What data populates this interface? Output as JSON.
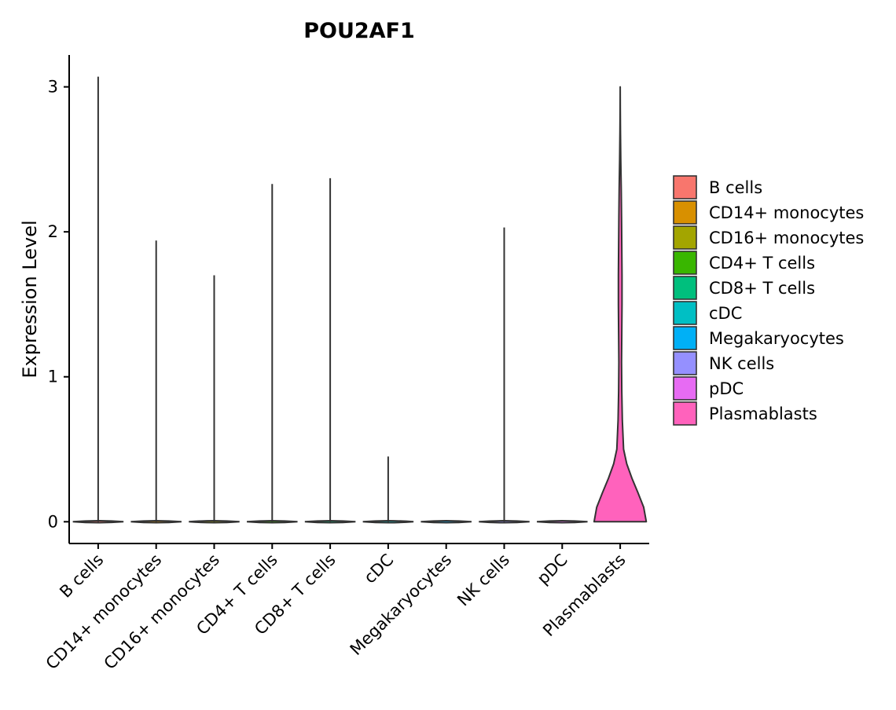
{
  "chart_data": {
    "type": "violin",
    "title": "POU2AF1",
    "xlabel": "",
    "ylabel": "Expression Level",
    "ylim": [
      -0.15,
      3.22
    ],
    "yticks": [
      0,
      1,
      2,
      3
    ],
    "categories": [
      "B cells",
      "CD14+ monocytes",
      "CD16+ monocytes",
      "CD4+ T cells",
      "CD8+ T cells",
      "cDC",
      "Megakaryocytes",
      "NK cells",
      "pDC",
      "Plasmablasts"
    ],
    "series": [
      {
        "name": "B cells",
        "color": "#F8766D",
        "max": 3.07
      },
      {
        "name": "CD14+ monocytes",
        "color": "#D89000",
        "max": 1.94
      },
      {
        "name": "CD16+ monocytes",
        "color": "#A3A500",
        "max": 1.7
      },
      {
        "name": "CD4+ T cells",
        "color": "#39B600",
        "max": 2.33
      },
      {
        "name": "CD8+ T cells",
        "color": "#00BF7D",
        "max": 2.37
      },
      {
        "name": "cDC",
        "color": "#00BFC4",
        "max": 0.45
      },
      {
        "name": "Megakaryocytes",
        "color": "#00B0F6",
        "max": 0.0
      },
      {
        "name": "NK cells",
        "color": "#9590FF",
        "max": 2.03
      },
      {
        "name": "pDC",
        "color": "#E76BF3",
        "max": 0.0
      },
      {
        "name": "Plasmablasts",
        "color": "#FF62BC",
        "max": 3.0
      }
    ],
    "plasmablasts_density": [
      [
        0.0,
        1.0
      ],
      [
        0.1,
        0.9
      ],
      [
        0.2,
        0.68
      ],
      [
        0.3,
        0.45
      ],
      [
        0.4,
        0.25
      ],
      [
        0.5,
        0.13
      ],
      [
        0.7,
        0.08
      ],
      [
        0.9,
        0.06
      ],
      [
        1.1,
        0.05
      ],
      [
        1.3,
        0.06
      ],
      [
        1.5,
        0.07
      ],
      [
        1.7,
        0.07
      ],
      [
        1.9,
        0.06
      ],
      [
        2.1,
        0.05
      ],
      [
        2.3,
        0.04
      ],
      [
        2.5,
        0.02
      ],
      [
        2.7,
        0.008
      ],
      [
        2.85,
        0.004
      ],
      [
        3.0,
        0.0
      ]
    ],
    "legend_position": "right"
  }
}
